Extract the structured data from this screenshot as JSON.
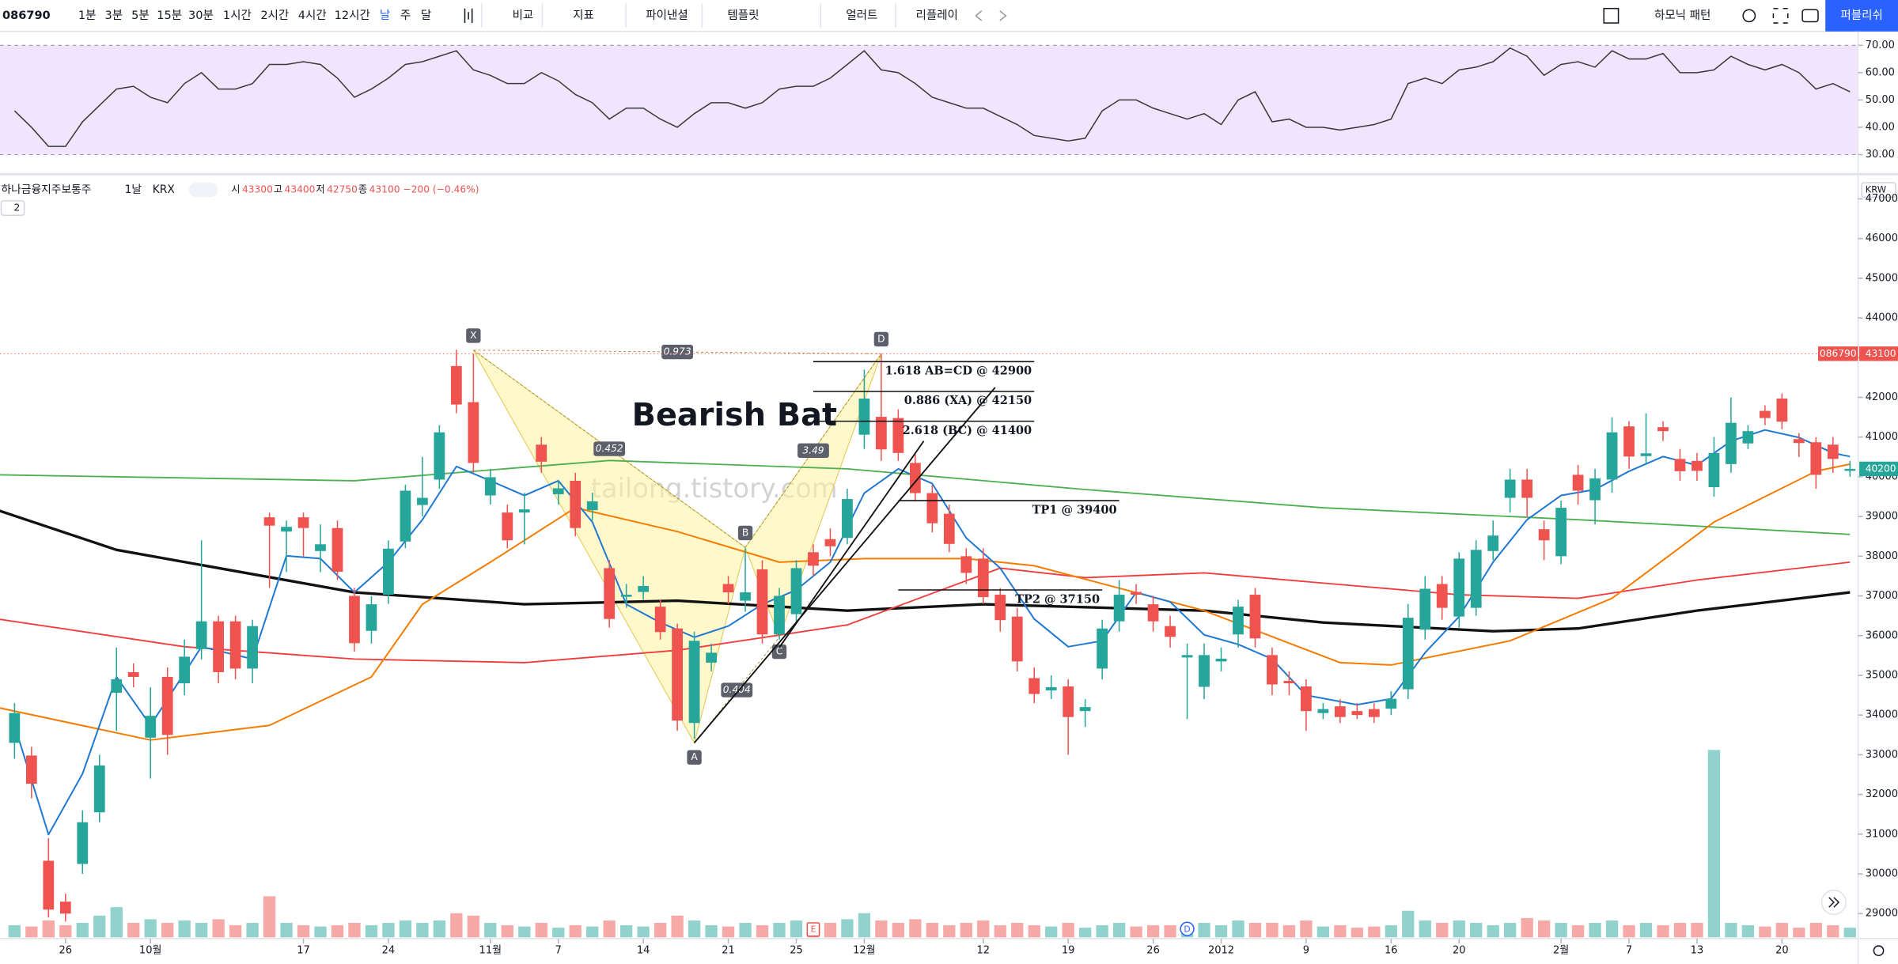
{
  "toolbar": {
    "symbol": "086790",
    "intervals": [
      "1분",
      "3분",
      "5분",
      "15분",
      "30분",
      "1시간",
      "2시간",
      "4시간",
      "12시간",
      "날",
      "주",
      "달"
    ],
    "active_interval": 9,
    "tools": [
      "비교",
      "지표",
      "파이낸셜",
      "템플릿",
      "얼러트",
      "리플레이"
    ],
    "harmonic": "하모닉 패턴",
    "publish": "퍼블리쉬"
  },
  "legend": {
    "name": "하나금융지주보통주",
    "interval": "1날",
    "exchange": "KRX",
    "o_label": "시",
    "open": "43300",
    "h_label": "고",
    "high": "43400",
    "l_label": "저",
    "low": "42750",
    "c_label": "종",
    "close": "43100",
    "change": "−200 (−0.46%)",
    "currency": "KRW",
    "pane_count": "2"
  },
  "chart_data": [
    {
      "type": "line",
      "color": "#3a3a3a",
      "band": [
        30,
        70
      ],
      "band_color": "#f1e4fd",
      "ylim": [
        25.5,
        73.3
      ],
      "yticks": [
        {
          "value": 70,
          "label": "70.00"
        },
        {
          "value": 60,
          "label": "60.00"
        },
        {
          "value": 50,
          "label": "50.00"
        },
        {
          "value": 40,
          "label": "40.00"
        },
        {
          "value": 30,
          "label": "30.00"
        }
      ],
      "values": [
        46,
        40,
        33,
        33,
        42,
        48,
        54,
        55,
        51,
        49,
        56,
        60,
        54,
        54,
        56,
        63,
        63,
        64,
        63,
        58,
        51,
        54,
        58,
        63,
        64,
        66,
        68,
        61,
        59,
        56,
        56,
        60,
        57,
        52,
        49,
        43,
        47,
        47,
        43,
        40,
        45,
        49,
        49,
        47,
        49,
        54,
        55,
        55,
        58,
        63,
        68,
        61,
        60,
        56,
        51,
        49,
        47,
        47,
        44,
        41,
        37,
        36,
        35,
        36,
        46,
        50,
        50,
        47,
        45,
        43,
        45,
        41,
        50,
        53,
        42,
        43,
        40,
        40,
        39,
        40,
        41,
        43,
        56,
        58,
        56,
        61,
        62,
        64,
        69,
        66,
        59,
        63,
        64,
        62,
        68,
        65,
        65,
        67,
        60,
        60,
        61,
        66,
        63,
        61,
        63,
        60,
        54,
        56,
        53
      ]
    },
    {
      "type": "candlestick",
      "up_color": "#26a69a",
      "down_color": "#ef5350",
      "ylim": [
        28400,
        47500
      ],
      "yticks": [
        47000,
        46000,
        45000,
        44000,
        43000,
        42000,
        41000,
        40000,
        39000,
        38000,
        37000,
        36000,
        35000,
        34000,
        33000,
        32000,
        31000,
        30000,
        29000
      ],
      "categories": [
        null,
        null,
        null,
        "26",
        null,
        null,
        null,
        null,
        "10월",
        null,
        null,
        null,
        null,
        null,
        null,
        null,
        null,
        "17",
        null,
        null,
        null,
        null,
        "24",
        null,
        null,
        null,
        null,
        null,
        "11월",
        null,
        null,
        null,
        "7",
        null,
        null,
        null,
        null,
        "14",
        null,
        null,
        null,
        null,
        "21",
        null,
        null,
        null,
        "25",
        null,
        null,
        null,
        "12월",
        null,
        null,
        null,
        null,
        null,
        null,
        "12",
        null,
        null,
        null,
        null,
        "19",
        null,
        null,
        null,
        null,
        "26",
        null,
        null,
        null,
        "2012",
        null,
        null,
        null,
        null,
        "9",
        null,
        null,
        null,
        null,
        "16",
        null,
        null,
        null,
        "20",
        null,
        null,
        null,
        null,
        null,
        "2월",
        null,
        null,
        null,
        "7",
        null,
        null,
        null,
        "13",
        null,
        null,
        null,
        null,
        "20",
        null,
        null,
        null,
        null
      ],
      "open": [
        33300,
        32980,
        30330,
        29300,
        30250,
        31550,
        34560,
        35080,
        33430,
        34960,
        34800,
        35660,
        36360,
        36360,
        35170,
        38980,
        38620,
        38980,
        38130,
        38710,
        37000,
        36120,
        37030,
        38370,
        39290,
        39930,
        42790,
        41880,
        39530,
        39100,
        39100,
        40810,
        39560,
        39900,
        39160,
        37700,
        36980,
        37100,
        36730,
        36180,
        33800,
        35320,
        37300,
        36880,
        37670,
        36030,
        36540,
        38100,
        38430,
        38460,
        41060,
        41510,
        41480,
        40350,
        39590,
        39070,
        38000,
        37940,
        37030,
        36480,
        34930,
        34620,
        34720,
        34100,
        35170,
        36360,
        37100,
        36790,
        36240,
        35450,
        34710,
        35350,
        36030,
        37030,
        35510,
        34860,
        34720,
        34050,
        34220,
        34100,
        34150,
        34160,
        34650,
        36150,
        37300,
        36480,
        36700,
        38130,
        39470,
        39930,
        38680,
        38000,
        40050,
        39410,
        39930,
        41270,
        40520,
        41250,
        40450,
        40400,
        39740,
        40320,
        40840,
        41660,
        41970,
        40950,
        40870,
        40810,
        40150
      ],
      "high": [
        34300,
        33200,
        30900,
        29500,
        31600,
        33000,
        35700,
        35300,
        34700,
        35200,
        35900,
        38400,
        36500,
        36500,
        36400,
        39100,
        38900,
        39100,
        38800,
        38900,
        37200,
        37000,
        38400,
        39800,
        40500,
        41300,
        43200,
        43100,
        40200,
        39300,
        39600,
        41000,
        39900,
        40100,
        39600,
        37900,
        37300,
        37500,
        36900,
        36300,
        36100,
        35800,
        37500,
        38200,
        37900,
        37200,
        37900,
        38300,
        38700,
        39700,
        42700,
        43100,
        41700,
        40600,
        39800,
        39300,
        38200,
        38200,
        37200,
        36700,
        35200,
        35000,
        34900,
        34400,
        36400,
        37400,
        37300,
        37000,
        36500,
        35800,
        35800,
        35700,
        36900,
        37200,
        35700,
        35100,
        34900,
        34300,
        34400,
        34300,
        34300,
        34600,
        36800,
        37500,
        37500,
        38100,
        38400,
        38900,
        40200,
        40200,
        38900,
        39400,
        40300,
        40200,
        41500,
        41400,
        41600,
        41400,
        40700,
        40600,
        41000,
        42000,
        41300,
        41800,
        42100,
        41100,
        41000,
        41000,
        40400
      ],
      "low": [
        32900,
        31900,
        28900,
        28800,
        30000,
        31300,
        33600,
        34700,
        32400,
        33000,
        34500,
        35400,
        34800,
        34900,
        34800,
        37200,
        37600,
        38000,
        37600,
        37400,
        35600,
        35800,
        36800,
        38200,
        39000,
        39700,
        41600,
        40100,
        39300,
        38200,
        38300,
        40100,
        39300,
        38500,
        38900,
        36200,
        36700,
        36900,
        35900,
        33600,
        33400,
        35100,
        36800,
        36600,
        35800,
        35900,
        36300,
        37500,
        38000,
        38300,
        40700,
        40400,
        40400,
        39400,
        38600,
        38100,
        37300,
        36800,
        36100,
        35100,
        34300,
        34400,
        33000,
        33700,
        34900,
        36100,
        36800,
        36100,
        35700,
        33900,
        34400,
        35100,
        35700,
        35700,
        34500,
        34500,
        33600,
        33900,
        33800,
        33900,
        33800,
        34000,
        34400,
        35900,
        36400,
        36200,
        36500,
        37900,
        39100,
        39000,
        37900,
        37800,
        39300,
        38800,
        39600,
        40200,
        40300,
        40900,
        39900,
        39900,
        39500,
        40100,
        40700,
        41300,
        41200,
        40500,
        39700,
        40100,
        40000
      ],
      "close": [
        34050,
        32270,
        29100,
        29000,
        31300,
        32730,
        34900,
        34960,
        33980,
        33500,
        35470,
        36360,
        35080,
        35170,
        36240,
        38770,
        38740,
        38710,
        38300,
        37610,
        35810,
        36790,
        38190,
        39650,
        39470,
        41120,
        41820,
        40350,
        39990,
        38400,
        39180,
        40380,
        39710,
        38710,
        39380,
        36420,
        37030,
        37250,
        36090,
        33860,
        35870,
        35570,
        37090,
        37090,
        36030,
        37000,
        37700,
        37760,
        38250,
        39440,
        41970,
        40690,
        40600,
        39590,
        38830,
        38310,
        37580,
        36970,
        36390,
        35350,
        34530,
        34700,
        33950,
        34200,
        36180,
        37030,
        37030,
        36360,
        35970,
        35510,
        35510,
        35420,
        36730,
        35930,
        34770,
        34800,
        34100,
        34150,
        33950,
        34000,
        33950,
        34410,
        36450,
        37180,
        36700,
        37940,
        38160,
        38520,
        39930,
        39470,
        38400,
        39220,
        39650,
        39960,
        41120,
        40510,
        40590,
        41150,
        40140,
        40150,
        40600,
        41360,
        41150,
        41480,
        41390,
        40850,
        40050,
        40450,
        40200
      ],
      "volume": {
        "values": [
          10,
          9,
          14,
          10,
          12,
          18,
          25,
          12,
          15,
          12,
          14,
          12,
          15,
          10,
          12,
          34,
          12,
          10,
          9,
          10,
          12,
          10,
          12,
          14,
          12,
          14,
          20,
          18,
          12,
          10,
          9,
          12,
          8,
          10,
          9,
          14,
          10,
          9,
          12,
          18,
          14,
          10,
          9,
          12,
          10,
          12,
          14,
          10,
          12,
          15,
          20,
          14,
          12,
          15,
          12,
          10,
          12,
          14,
          10,
          12,
          10,
          9,
          12,
          8,
          10,
          12,
          9,
          10,
          10,
          9,
          12,
          10,
          14,
          12,
          12,
          10,
          14,
          9,
          10,
          8,
          9,
          10,
          22,
          14,
          12,
          14,
          12,
          10,
          12,
          16,
          14,
          12,
          10,
          12,
          14,
          10,
          12,
          10,
          12,
          12,
          155,
          12,
          10,
          9,
          12,
          8,
          12,
          10,
          8
        ]
      },
      "lines": [
        {
          "color": "#111111",
          "width": 2.2,
          "x": [
            -1,
            6,
            20,
            30,
            39,
            49,
            57,
            70,
            77,
            87,
            92,
            99,
            108
          ],
          "values": [
            39160,
            38160,
            37090,
            36790,
            36880,
            36630,
            36790,
            36630,
            36330,
            36110,
            36180,
            36630,
            37090
          ]
        },
        {
          "color": "#4caf50",
          "width": 1.2,
          "x": [
            -1,
            20,
            35,
            49,
            63,
            77,
            92,
            108
          ],
          "values": [
            40050,
            39900,
            40410,
            40200,
            39680,
            39220,
            38920,
            38550
          ]
        },
        {
          "color": "#f23b3b",
          "width": 1.2,
          "x": [
            -1,
            10,
            20,
            30,
            39,
            49,
            58,
            63,
            70,
            85,
            92,
            99,
            108
          ],
          "values": [
            36420,
            35720,
            35410,
            35320,
            35630,
            36270,
            37700,
            37460,
            37580,
            37030,
            36940,
            37400,
            37850
          ]
        },
        {
          "color": "#f57c00",
          "width": 1.3,
          "x": [
            -1,
            8,
            15,
            21,
            24,
            28,
            33,
            39,
            45,
            50,
            56,
            60,
            70,
            78,
            81,
            88,
            94,
            100,
            106,
            108
          ],
          "values": [
            34190,
            33370,
            33740,
            34960,
            36790,
            37850,
            39220,
            38620,
            37850,
            37940,
            37940,
            37760,
            36630,
            35320,
            35260,
            35870,
            36940,
            38860,
            40140,
            40320
          ]
        },
        {
          "color": "#1e78d2",
          "width": 1.3,
          "x": [
            0,
            2,
            4,
            6,
            8,
            11,
            14,
            16,
            18,
            20,
            22,
            24,
            26,
            28,
            30,
            32,
            34,
            36,
            38,
            40,
            42,
            44,
            46,
            48,
            50,
            52,
            54,
            56,
            58,
            60,
            62,
            64,
            66,
            68,
            70,
            72,
            74,
            76,
            79,
            81,
            83,
            85,
            87,
            89,
            91,
            93,
            95,
            97,
            99,
            101,
            103,
            105,
            107,
            108
          ],
          "values": [
            33740,
            30990,
            32520,
            34960,
            33740,
            35720,
            35410,
            38010,
            37940,
            37090,
            37850,
            38920,
            40260,
            39900,
            39530,
            39900,
            38860,
            36790,
            36330,
            35960,
            36240,
            36790,
            37150,
            37850,
            39590,
            40200,
            39830,
            38460,
            37700,
            36420,
            35720,
            35870,
            37090,
            36850,
            36020,
            35780,
            35410,
            34500,
            34260,
            34410,
            35570,
            36480,
            37850,
            38920,
            39530,
            39680,
            40140,
            40510,
            40290,
            40900,
            41180,
            40990,
            40600,
            40510
          ]
        }
      ],
      "price_tags": [
        {
          "symbol": "086790",
          "value": 43100,
          "color": "#ef5350"
        },
        {
          "value": 40200,
          "color": "#26a69a"
        }
      ],
      "pattern": {
        "title": "Bearish Bat",
        "points": [
          {
            "label": "X",
            "x": 27,
            "price": 43190
          },
          {
            "label": "A",
            "x": 40,
            "price": 33300
          },
          {
            "label": "B",
            "x": 43,
            "price": 38220
          },
          {
            "label": "C",
            "x": 45,
            "price": 35960
          },
          {
            "label": "D",
            "x": 51,
            "price": 43100
          }
        ],
        "ratios": [
          {
            "text": "0.973",
            "from": 0,
            "to": 4
          },
          {
            "text": "0.452",
            "from": 0,
            "to": 2
          },
          {
            "text": "3.49",
            "from": 2,
            "to": 4
          },
          {
            "text": "0.404",
            "from": 1,
            "to": 3
          }
        ]
      },
      "trendlines": [
        {
          "x": [
            40,
            57.7
          ],
          "values": [
            33300,
            42250
          ]
        },
        {
          "x": [
            45,
            53.5
          ],
          "values": [
            35700,
            40900
          ]
        }
      ],
      "levels": [
        {
          "text": "1.618 AB=CD @ 42900",
          "price": 42900,
          "x": [
            47,
            60
          ]
        },
        {
          "text": "0.886 (XA) @ 42150",
          "price": 42150,
          "x": [
            47,
            60
          ]
        },
        {
          "text": "2.618 (BC) @ 41400",
          "price": 41400,
          "x": [
            47,
            60
          ]
        },
        {
          "text": "TP1 @ 39400",
          "price": 39400,
          "x": [
            52,
            65
          ]
        },
        {
          "text": "TP2 @ 37150",
          "price": 37150,
          "x": [
            52,
            64
          ]
        }
      ],
      "events": [
        {
          "label": "E",
          "at": 47,
          "color": "#ef5350"
        },
        {
          "label": "D",
          "at": 69,
          "color": "#2962ff"
        }
      ],
      "watermark": "tailong.tistory.com"
    }
  ]
}
